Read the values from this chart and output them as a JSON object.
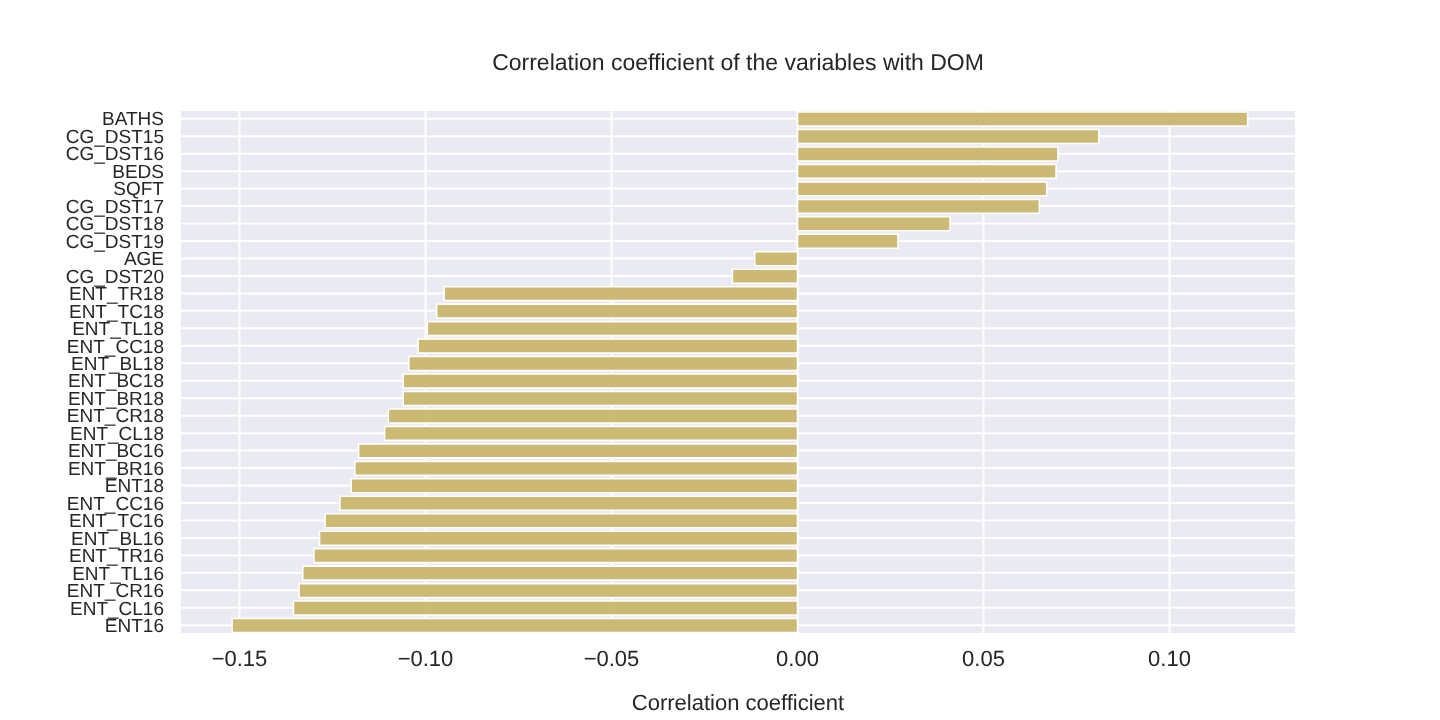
{
  "chart_data": {
    "type": "bar",
    "orientation": "horizontal",
    "title": "Correlation coefficient of the variables with DOM",
    "xlabel": "Correlation coefficient",
    "categories": [
      "BATHS",
      "CG_DST15",
      "CG_DST16",
      "BEDS",
      "SQFT",
      "CG_DST17",
      "CG_DST18",
      "CG_DST19",
      "AGE",
      "CG_DST20",
      "ENT_TR18",
      "ENT_TC18",
      "ENT_TL18",
      "ENT_CC18",
      "ENT_BL18",
      "ENT_BC18",
      "ENT_BR18",
      "ENT_CR18",
      "ENT_CL18",
      "ENT_BC16",
      "ENT_BR16",
      "ENT18",
      "ENT_CC16",
      "ENT_TC16",
      "ENT_BL16",
      "ENT_TR16",
      "ENT_TL16",
      "ENT_CR16",
      "ENT_CL16",
      "ENT16"
    ],
    "values": [
      0.121,
      0.081,
      0.07,
      0.0695,
      0.067,
      0.065,
      0.041,
      0.027,
      -0.0115,
      -0.0175,
      -0.095,
      -0.097,
      -0.0995,
      -0.102,
      -0.1045,
      -0.106,
      -0.106,
      -0.11,
      -0.111,
      -0.118,
      -0.119,
      -0.12,
      -0.123,
      -0.127,
      -0.1285,
      -0.13,
      -0.133,
      -0.134,
      -0.1355,
      -0.152
    ],
    "color": "#ccb974",
    "xlim": [
      -0.166,
      0.134
    ],
    "xticks": [
      {
        "value": -0.15,
        "label": "−0.15"
      },
      {
        "value": -0.1,
        "label": "−0.10"
      },
      {
        "value": -0.05,
        "label": "−0.05"
      },
      {
        "value": 0,
        "label": "0.00"
      },
      {
        "value": 0.05,
        "label": "0.05"
      },
      {
        "value": 0.1,
        "label": "0.10"
      }
    ],
    "grid": true
  }
}
